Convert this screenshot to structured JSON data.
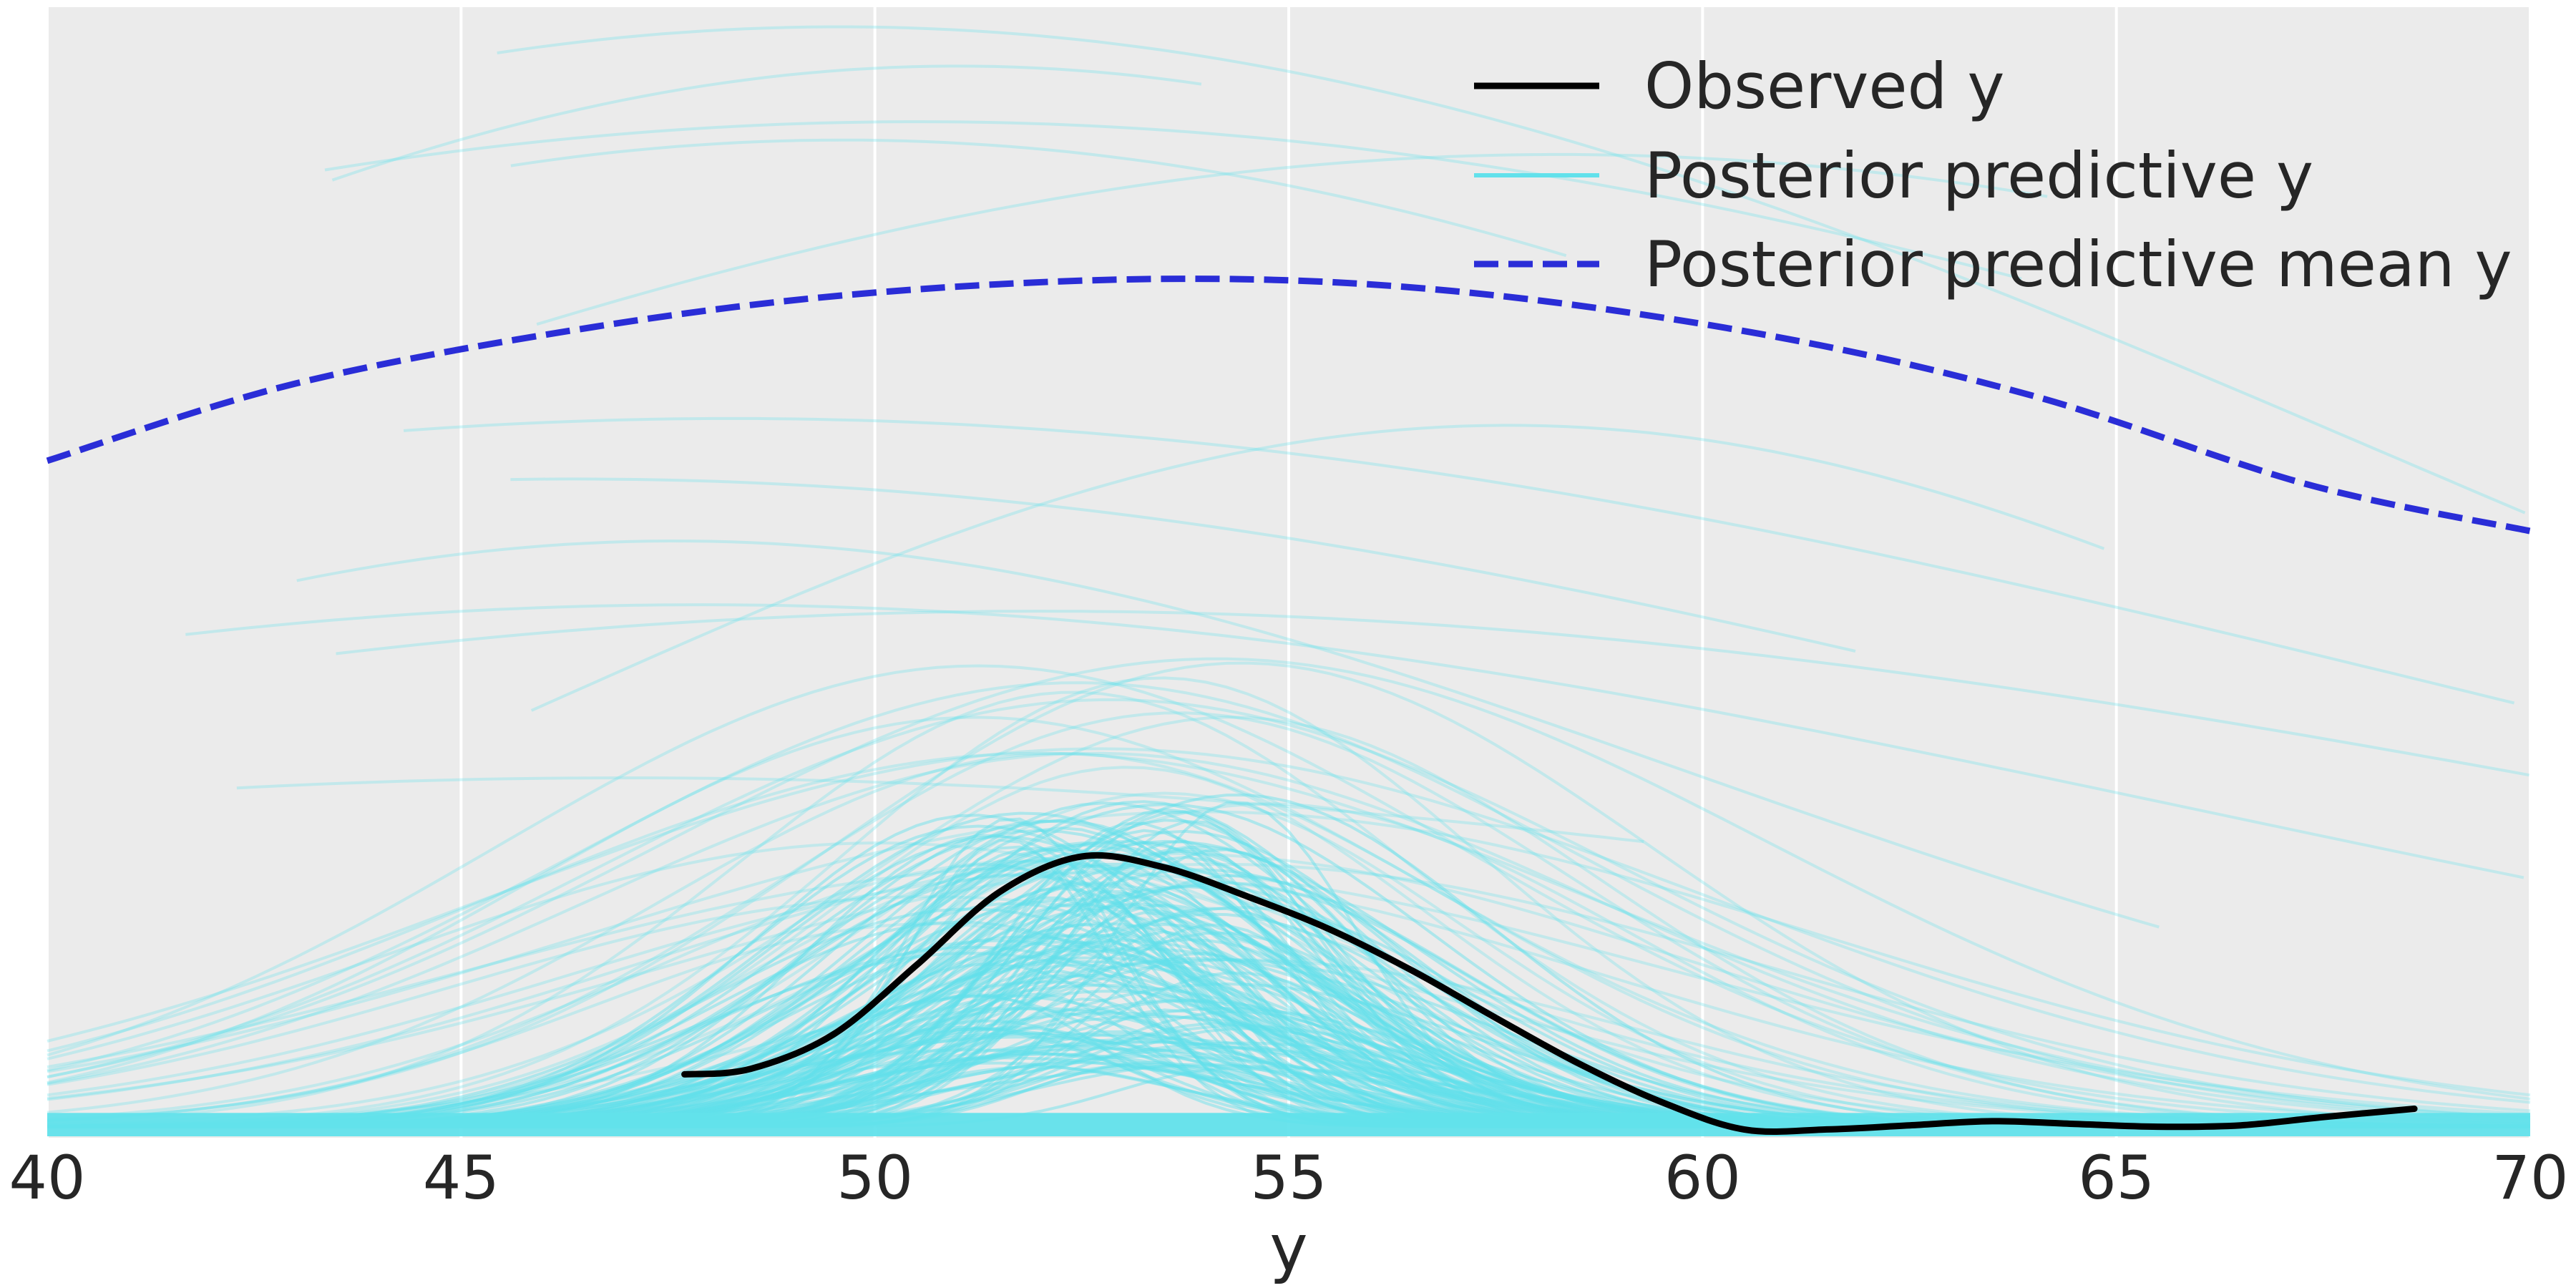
{
  "chart_data": {
    "type": "line",
    "title": "",
    "xlabel": "y",
    "ylabel": "",
    "xlim": [
      40,
      70
    ],
    "xticks": [
      40,
      45,
      50,
      55,
      60,
      65,
      70
    ],
    "xtick_labels": [
      "40",
      "45",
      "50",
      "55",
      "60",
      "65",
      "70"
    ],
    "yticks_shown": false,
    "grid": true,
    "legend_position": "top-right",
    "colors": {
      "background": "#ebebeb",
      "grid": "#ffffff",
      "observed": "#000000",
      "posterior_predictive": "#62e1eb",
      "posterior_mean": "#2a2dd7"
    },
    "series": [
      {
        "name": "Observed y",
        "style": "solid",
        "x": [
          47.7,
          48.5,
          49.5,
          50.5,
          51.5,
          52.5,
          53.5,
          54.5,
          55.5,
          56.5,
          57.5,
          58.5,
          59.5,
          60.5,
          61.5,
          62.5,
          63.5,
          64.5,
          65.5,
          66.5,
          67.5,
          68.6
        ],
        "y": [
          0.046,
          0.05,
          0.075,
          0.125,
          0.178,
          0.204,
          0.196,
          0.175,
          0.151,
          0.121,
          0.087,
          0.054,
          0.026,
          0.006,
          0.006,
          0.009,
          0.012,
          0.01,
          0.008,
          0.009,
          0.015,
          0.021
        ]
      },
      {
        "name": "Posterior predictive mean y",
        "style": "dashed",
        "x": [
          40,
          43,
          46.6,
          50,
          53.7,
          57,
          60.7,
          64,
          67.3,
          70
        ],
        "y": [
          0.491,
          0.547,
          0.588,
          0.613,
          0.623,
          0.614,
          0.583,
          0.538,
          0.474,
          0.44
        ]
      },
      {
        "name": "Posterior predictive y",
        "style": "solid-translucent",
        "samples": 200,
        "center_range": [
          49.5,
          56
        ],
        "peak_range": [
          0.04,
          0.33
        ],
        "support": [
          0,
          0.82
        ]
      }
    ],
    "ylim": [
      0,
      0.82
    ]
  }
}
